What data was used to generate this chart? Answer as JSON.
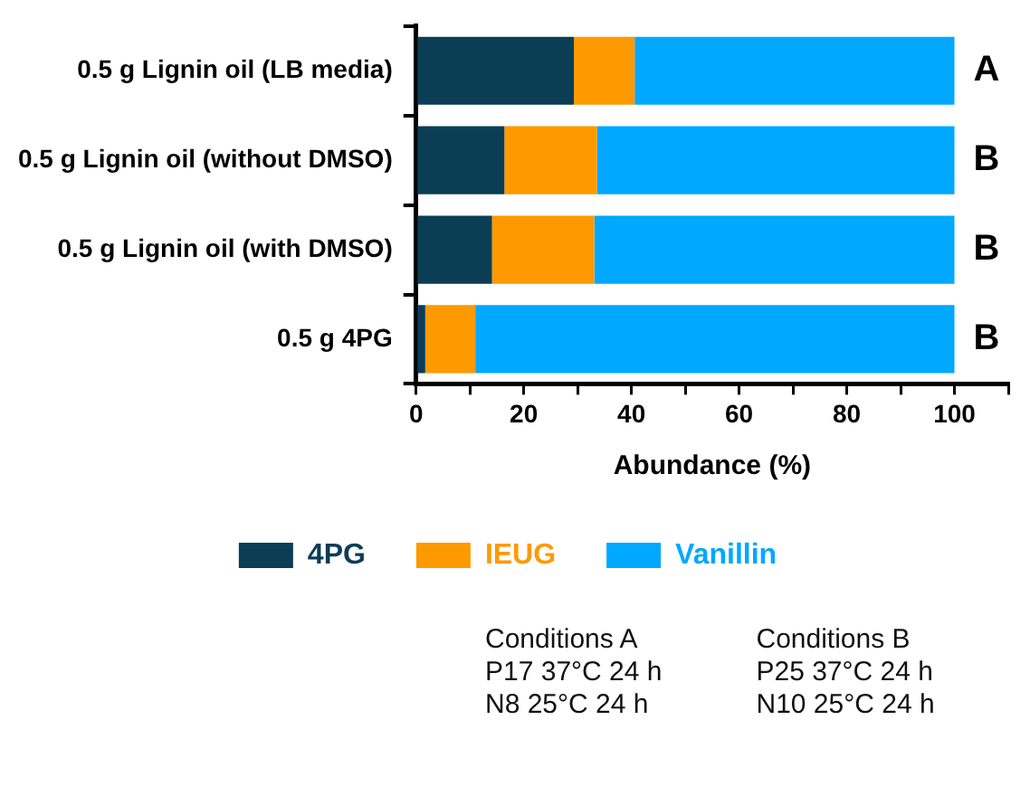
{
  "chart_data": {
    "type": "bar",
    "orientation": "horizontal",
    "stacked": true,
    "xlabel": "Abundance (%)",
    "categories": [
      "0.5 g Lignin oil (LB media)",
      "0.5 g Lignin oil (without DMSO)",
      "0.5 g Lignin oil (with DMSO)",
      "0.5 g 4PG"
    ],
    "series": [
      {
        "name": "4PG",
        "color": "#0b3d55",
        "values": [
          29.3,
          16.4,
          14.1,
          1.7
        ]
      },
      {
        "name": "IEUG",
        "color": "#ff9900",
        "values": [
          11.3,
          17.2,
          19.0,
          9.3
        ]
      },
      {
        "name": "Vanillin",
        "color": "#00a8ff",
        "values": [
          59.4,
          66.4,
          66.9,
          89.0
        ]
      }
    ],
    "xlim": [
      0,
      110
    ],
    "xticks": [
      0,
      {
        "value": 10,
        "label": null
      },
      20,
      {
        "value": 30,
        "label": null
      },
      40,
      {
        "value": 50,
        "label": null
      },
      60,
      {
        "value": 70,
        "label": null
      },
      80,
      {
        "value": 90,
        "label": null
      },
      100,
      {
        "value": 110,
        "label": null
      }
    ],
    "grid": false,
    "legend": "bottom",
    "annotations": [
      "A",
      "B",
      "B",
      "B",
      "Conditions A\nP17 37°C 24 h\nN8 25°C 24 h",
      "Conditions B\nP25 37°C 24 h\nN10 25°C 24 h"
    ]
  }
}
